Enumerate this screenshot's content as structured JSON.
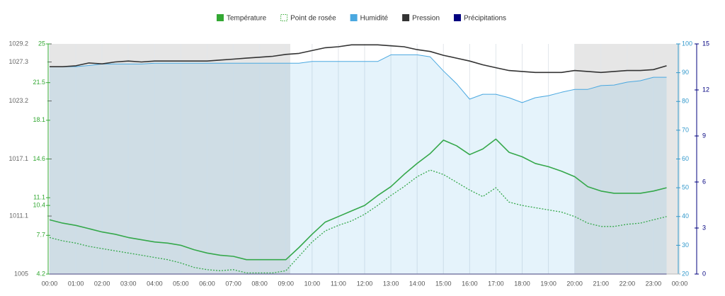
{
  "chart_data": {
    "type": "line",
    "legend": "top",
    "x": [
      0,
      0.5,
      1,
      1.5,
      2,
      2.5,
      3,
      3.5,
      4,
      4.5,
      5,
      5.5,
      6,
      6.5,
      7,
      7.5,
      8,
      8.5,
      9,
      9.5,
      10,
      10.5,
      11,
      11.5,
      12,
      12.5,
      13,
      13.5,
      14,
      14.5,
      15,
      15.5,
      16,
      16.5,
      17,
      17.5,
      18,
      18.5,
      19,
      19.5,
      20,
      20.5,
      21,
      21.5,
      22,
      22.5,
      23,
      23.5
    ],
    "xlim": [
      0,
      24
    ],
    "xticks": [
      {
        "value": 0,
        "label": "00:00"
      },
      {
        "value": 1,
        "label": "01:00"
      },
      {
        "value": 2,
        "label": "02:00"
      },
      {
        "value": 3,
        "label": "03:00"
      },
      {
        "value": 4,
        "label": "04:00"
      },
      {
        "value": 5,
        "label": "05:00"
      },
      {
        "value": 6,
        "label": "06:00"
      },
      {
        "value": 7,
        "label": "07:00"
      },
      {
        "value": 8,
        "label": "08:00"
      },
      {
        "value": 9,
        "label": "09:00"
      },
      {
        "value": 10,
        "label": "10:00"
      },
      {
        "value": 11,
        "label": "11:00"
      },
      {
        "value": 12,
        "label": "12:00"
      },
      {
        "value": 13,
        "label": "13:00"
      },
      {
        "value": 14,
        "label": "14:00"
      },
      {
        "value": 15,
        "label": "15:00"
      },
      {
        "value": 16,
        "label": "16:00"
      },
      {
        "value": 17,
        "label": "17:00"
      },
      {
        "value": 18,
        "label": "18:00"
      },
      {
        "value": 19,
        "label": "19:00"
      },
      {
        "value": 20,
        "label": "20:00"
      },
      {
        "value": 21,
        "label": "21:00"
      },
      {
        "value": 22,
        "label": "22:00"
      },
      {
        "value": 23,
        "label": "23:00"
      },
      {
        "value": 24,
        "label": "00:00"
      }
    ],
    "ylim": [
      4.2,
      25
    ],
    "yticks": [
      4.2,
      7.7,
      10.4,
      11.1,
      14.6,
      18.1,
      21.5,
      25
    ],
    "y2lim": [
      20,
      100
    ],
    "y2ticks": [
      20,
      30,
      40,
      50,
      60,
      70,
      80,
      90,
      100
    ],
    "y3lim": [
      1005,
      1029.2
    ],
    "y3ticks": [
      1005,
      1011.1,
      1017.1,
      1023.2,
      1027.3,
      1029.2
    ],
    "y4lim": [
      0,
      15
    ],
    "y4ticks": [
      0,
      3,
      6,
      9,
      12,
      15
    ],
    "series": [
      {
        "name": "Température",
        "color": "#33a833",
        "axis": "y",
        "values": [
          9.1,
          8.8,
          8.6,
          8.3,
          8.0,
          7.8,
          7.5,
          7.3,
          7.1,
          7.0,
          6.8,
          6.4,
          6.1,
          5.9,
          5.8,
          5.5,
          5.5,
          5.5,
          5.5,
          6.6,
          7.8,
          8.9,
          9.4,
          9.9,
          10.4,
          11.3,
          12.1,
          13.2,
          14.2,
          15.1,
          16.3,
          15.8,
          15.0,
          15.5,
          16.4,
          15.2,
          14.8,
          14.2,
          13.9,
          13.5,
          13.0,
          12.1,
          11.7,
          11.5,
          11.5,
          11.5,
          11.7,
          12.0
        ]
      },
      {
        "name": "Point de rosée",
        "color": "#33a833",
        "axis": "y",
        "values": [
          7.5,
          7.2,
          7.0,
          6.7,
          6.5,
          6.3,
          6.1,
          5.9,
          5.7,
          5.5,
          5.2,
          4.8,
          4.6,
          4.5,
          4.6,
          4.3,
          4.3,
          4.3,
          4.5,
          5.8,
          7.1,
          8.1,
          8.6,
          9.0,
          9.6,
          10.4,
          11.3,
          12.1,
          13.0,
          13.6,
          13.2,
          12.5,
          11.8,
          11.2,
          12.0,
          10.7,
          10.4,
          10.2,
          10.0,
          9.8,
          9.4,
          8.8,
          8.5,
          8.5,
          8.7,
          8.8,
          9.1,
          9.4
        ]
      },
      {
        "name": "Humidité",
        "color": "#4aa8e0",
        "axis": "y2",
        "values": [
          92.1,
          92.1,
          92.1,
          92.5,
          93,
          93,
          93,
          93,
          93.3,
          93.3,
          93.3,
          93.3,
          93.3,
          93.3,
          93.3,
          93.3,
          93.3,
          93.3,
          93.3,
          93.3,
          93.9,
          93.9,
          93.9,
          93.9,
          93.9,
          93.9,
          96.2,
          96.2,
          96.2,
          95.5,
          90.6,
          86.2,
          80.8,
          82.5,
          82.5,
          81.3,
          79.6,
          81.3,
          82,
          83.2,
          84.2,
          84.2,
          85.5,
          85.7,
          86.7,
          87.2,
          88.4,
          88.4
        ]
      },
      {
        "name": "Pression",
        "color": "#333333",
        "axis": "y3",
        "values": [
          1026.8,
          1026.8,
          1026.9,
          1027.2,
          1027.1,
          1027.3,
          1027.4,
          1027.3,
          1027.4,
          1027.4,
          1027.4,
          1027.4,
          1027.4,
          1027.5,
          1027.6,
          1027.7,
          1027.8,
          1027.9,
          1028.1,
          1028.2,
          1028.5,
          1028.8,
          1028.9,
          1029.1,
          1029.1,
          1029.1,
          1029.0,
          1028.9,
          1028.6,
          1028.4,
          1028.0,
          1027.7,
          1027.4,
          1027.0,
          1026.7,
          1026.4,
          1026.3,
          1026.2,
          1026.2,
          1026.2,
          1026.4,
          1026.3,
          1026.2,
          1026.3,
          1026.4,
          1026.4,
          1026.5,
          1026.9
        ]
      },
      {
        "name": "Précipitations",
        "color": "#00007f",
        "axis": "y4",
        "values": [
          0,
          0,
          0,
          0,
          0,
          0,
          0,
          0,
          0,
          0,
          0,
          0,
          0,
          0,
          0,
          0,
          0,
          0,
          0,
          0,
          0,
          0,
          0,
          0,
          0,
          0,
          0,
          0,
          0,
          0,
          0,
          0,
          0,
          0,
          0,
          0,
          0,
          0,
          0,
          0,
          0,
          0,
          0,
          0,
          0,
          0,
          0,
          0
        ]
      }
    ]
  }
}
